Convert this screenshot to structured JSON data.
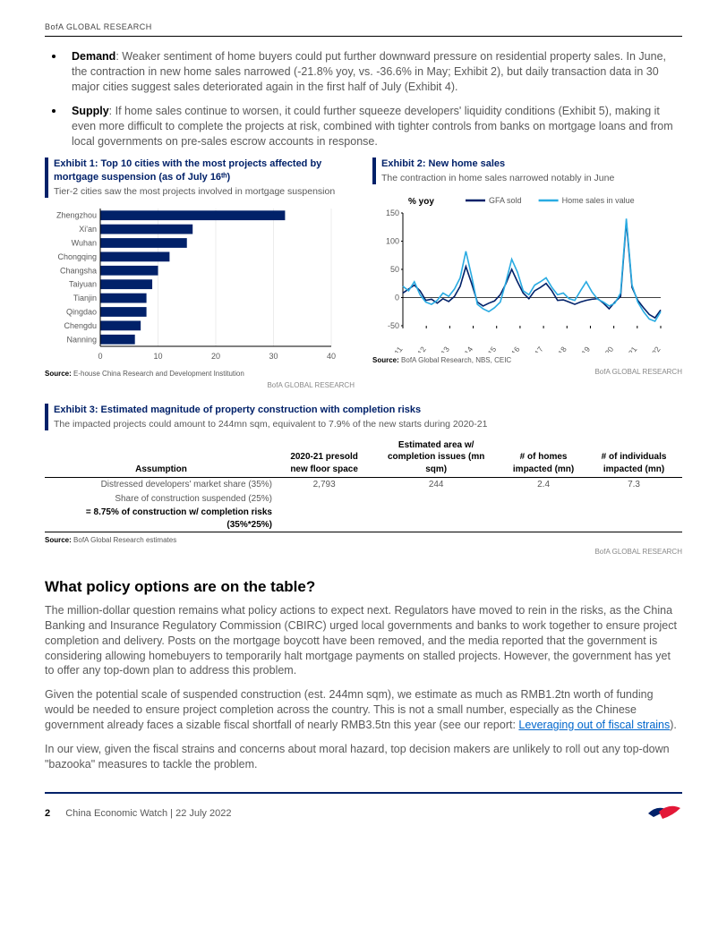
{
  "header_brand": "BofA GLOBAL RESEARCH",
  "bullets": {
    "demand_label": "Demand",
    "demand_text": ": Weaker sentiment of home buyers could put further downward pressure on residential property sales. In June, the contraction in new home sales narrowed (-21.8% yoy, vs. -36.6% in May; Exhibit 2), but daily transaction data in 30 major cities suggest sales deteriorated again in the first half of July (Exhibit 4).",
    "supply_label": "Supply",
    "supply_text": ": If home sales continue to worsen, it could further squeeze developers' liquidity conditions (Exhibit 5), making it even more difficult to complete the projects at risk, combined with tighter controls from banks on mortgage loans and from local governments on pre-sales escrow accounts in response."
  },
  "exhibit1": {
    "title": "Exhibit 1: Top 10 cities with the most projects affected by mortgage suspension (as of July 16ᵗʰ)",
    "subtitle": "Tier-2 cities saw the most projects involved in mortgage suspension",
    "type": "horizontal-bar",
    "categories": [
      "Zhengzhou",
      "Xi'an",
      "Wuhan",
      "Chongqing",
      "Changsha",
      "Taiyuan",
      "Tianjin",
      "Qingdao",
      "Chengdu",
      "Nanning"
    ],
    "values": [
      32,
      16,
      15,
      12,
      10,
      9,
      8,
      8,
      7,
      6
    ],
    "bar_color": "#012169",
    "xlim": [
      0,
      40
    ],
    "xtick_step": 10,
    "label_fontsize": 9,
    "axis_color": "#000000",
    "grid_color": "#d9d9d9",
    "source_label": "Source:",
    "source_text": "E-house China Research and Development Institution",
    "brand_tag": "BofA GLOBAL RESEARCH"
  },
  "exhibit2": {
    "title": "Exhibit 2: New home sales",
    "subtitle": "The contraction in home sales narrowed notably in June",
    "type": "line",
    "ylabel": "% yoy",
    "ylim": [
      -50,
      150
    ],
    "ytick_step": 50,
    "x_years": [
      "2011",
      "2012",
      "2013",
      "2014",
      "2015",
      "2016",
      "2017",
      "2018",
      "2019",
      "2020",
      "2021",
      "2022"
    ],
    "series": [
      {
        "name": "GFA sold",
        "color": "#012169",
        "line_width": 1.6,
        "points": [
          8,
          15,
          22,
          12,
          -5,
          -3,
          -10,
          -2,
          -7,
          2,
          20,
          55,
          25,
          -8,
          -15,
          -10,
          -6,
          5,
          25,
          50,
          28,
          8,
          -2,
          12,
          18,
          25,
          12,
          -5,
          -4,
          -8,
          -12,
          -8,
          -5,
          -3,
          -2,
          -10,
          -20,
          -8,
          2,
          135,
          18,
          -5,
          -18,
          -30,
          -36,
          -22
        ]
      },
      {
        "name": "Home sales in value",
        "color": "#29abe2",
        "line_width": 1.6,
        "points": [
          20,
          12,
          28,
          5,
          -8,
          -12,
          -5,
          8,
          2,
          15,
          35,
          82,
          38,
          -12,
          -20,
          -25,
          -18,
          -8,
          28,
          68,
          45,
          12,
          5,
          22,
          28,
          35,
          18,
          5,
          8,
          -2,
          -5,
          12,
          28,
          10,
          -3,
          -8,
          -15,
          -10,
          8,
          140,
          22,
          -8,
          -25,
          -38,
          -42,
          -25
        ]
      }
    ],
    "legend_position": "top-center",
    "axis_color": "#000000",
    "grid_color": "#e0e0e0",
    "source_label": "Source:",
    "source_text": "BofA Global Research, NBS, CEIC",
    "brand_tag": "BofA GLOBAL RESEARCH"
  },
  "exhibit3": {
    "title": "Exhibit 3: Estimated magnitude of property construction with completion risks",
    "subtitle": "The impacted projects could amount to 244mn sqm, equivalent to 7.9% of the new starts during 2020-21",
    "type": "table",
    "columns": [
      "Assumption",
      "2020-21 presold new floor space",
      "Estimated area w/ completion issues (mn sqm)",
      "# of homes impacted (mn)",
      "# of individuals impacted (mn)"
    ],
    "rows": [
      [
        "Distressed developers' market share (35%)",
        "2,793",
        "244",
        "2.4",
        "7.3"
      ],
      [
        "Share of construction suspended (25%)",
        "",
        "",
        "",
        ""
      ],
      [
        "= 8.75% of construction w/ completion risks (35%*25%)",
        "",
        "",
        "",
        ""
      ]
    ],
    "header_border": "#000000",
    "text_color": "#595959",
    "source_label": "Source:",
    "source_text": "BofA Global Research estimates",
    "brand_tag": "BofA GLOBAL RESEARCH"
  },
  "policy": {
    "heading": "What policy options are on the table?",
    "p1": "The million-dollar question remains what policy actions to expect next. Regulators have moved to rein in the risks, as the China Banking and Insurance Regulatory Commission (CBIRC) urged local governments and banks to work together to ensure project completion and delivery. Posts on the mortgage boycott have been removed, and the media reported that the government is considering allowing homebuyers to temporarily halt mortgage payments on stalled projects. However, the government has yet to offer any top-down plan to address this problem.",
    "p2a": "Given the potential scale of suspended construction (est. 244mn sqm), we estimate as much as RMB1.2tn worth of funding would be needed to ensure project completion across the country. This is not a small number, especially as the Chinese government already faces a sizable fiscal shortfall of nearly RMB3.5tn this year (see our report: ",
    "p2_link": "Leveraging out of fiscal strains",
    "p2b": ").",
    "p3": "In our view, given the fiscal strains and concerns about moral hazard, top decision makers are unlikely to roll out any top-down \"bazooka\" measures to tackle the problem."
  },
  "footer": {
    "page": "2",
    "doc": "China Economic Watch | 22 July 2022"
  },
  "logo": {
    "primary": "#e31837",
    "secondary": "#012169"
  }
}
